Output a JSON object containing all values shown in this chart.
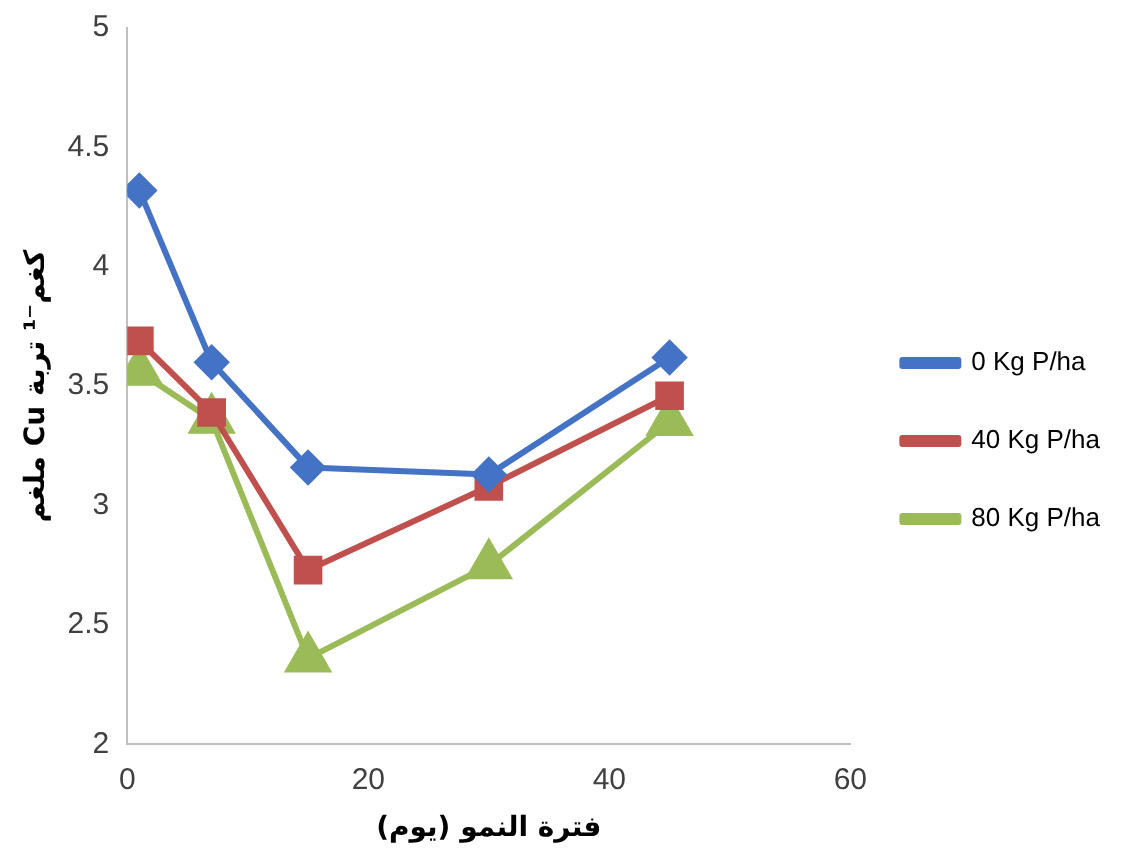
{
  "chart_data": {
    "type": "line",
    "xlabel": "فترة النمو (يوم)",
    "ylabel": "ملغم Cu كغم⁻¹ تربة",
    "x": [
      1,
      7,
      15,
      30,
      45
    ],
    "series": [
      {
        "name": "0 Kg P/ha",
        "color": "#4472c4",
        "marker": "diamond",
        "values": [
          4.32,
          3.6,
          3.16,
          3.13,
          3.62
        ]
      },
      {
        "name": "40 Kg P/ha",
        "color": "#c0504d",
        "marker": "square",
        "values": [
          3.69,
          3.39,
          2.73,
          3.08,
          3.46
        ]
      },
      {
        "name": "80 Kg P/ha",
        "color": "#9bbb59",
        "marker": "triangle",
        "values": [
          3.56,
          3.36,
          2.36,
          2.75,
          3.35
        ]
      }
    ],
    "xlim": [
      0,
      60
    ],
    "xticks": [
      0,
      20,
      40,
      60
    ],
    "ylim": [
      2,
      5
    ],
    "yticks": [
      2,
      2.5,
      3,
      3.5,
      4,
      4.5,
      5
    ],
    "grid": false,
    "legend": "right"
  }
}
